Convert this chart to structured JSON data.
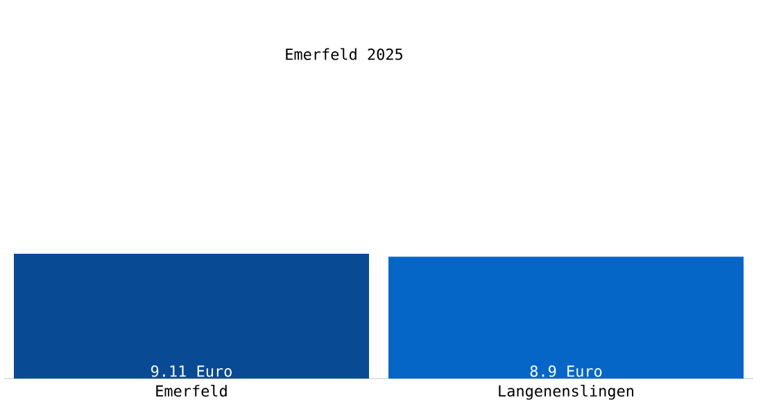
{
  "chart_data": {
    "type": "bar",
    "title": "Emerfeld 2025",
    "categories": [
      "Emerfeld",
      "Langenenslingen"
    ],
    "values": [
      9.11,
      8.9
    ],
    "colors": [
      "#084a94",
      "#0566c8"
    ],
    "value_labels": [
      "9.11 Euro",
      "8.9 Euro"
    ]
  }
}
